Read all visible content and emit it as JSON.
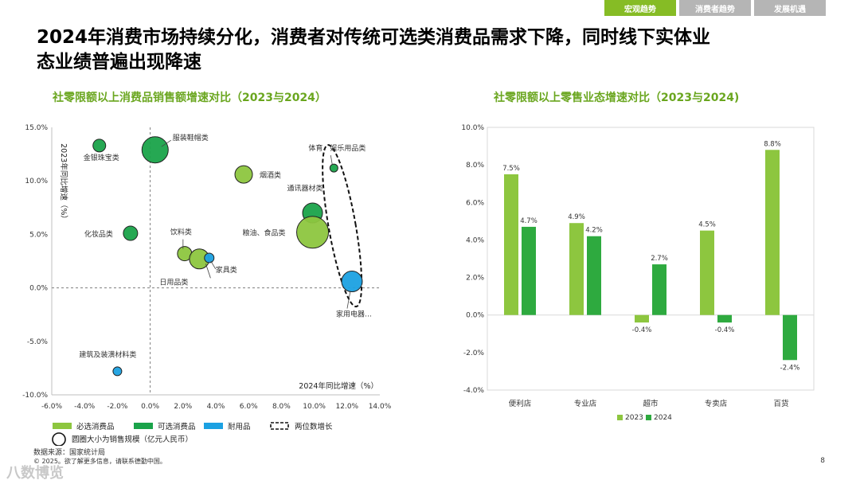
{
  "tabs": [
    "宏观趋势",
    "消费者趋势",
    "发展机遇"
  ],
  "headline_line1": "2024年消费市场持续分化，消费者对传统可选类消费品需求下降，同时线下实体业",
  "headline_line2": "态业绩普遍出现降速",
  "chart_data": [
    {
      "type": "scatter",
      "title": "社零限额以上消费品销售额增速对比（2023与2024）",
      "xlabel": "2024年同比增速（%）",
      "ylabel": "2023年同比增速（%）",
      "xlim": [
        -6,
        14
      ],
      "ylim": [
        -10,
        15
      ],
      "xticks": [
        "-6.0%",
        "-4.0%",
        "-2.0%",
        "0.0%",
        "2.0%",
        "4.0%",
        "6.0%",
        "8.0%",
        "10.0%",
        "12.0%",
        "14.0%"
      ],
      "yticks": [
        "-10.0%",
        "-5.0%",
        "0.0%",
        "5.0%",
        "10.0%",
        "15.0%"
      ],
      "grid": false,
      "series": [
        {
          "name": "必选消费品",
          "color": "#8dc63f"
        },
        {
          "name": "可选消费品",
          "color": "#1aa34a"
        },
        {
          "name": "耐用品",
          "color": "#1ba1e2"
        }
      ],
      "points": [
        {
          "label": "金银珠宝类",
          "x": -3.1,
          "y": 13.3,
          "series": 1,
          "size": 1.6
        },
        {
          "label": "服装鞋帽类",
          "x": 0.3,
          "y": 12.9,
          "series": 1,
          "size": 3.3
        },
        {
          "label": "体育、娱乐用品类",
          "x": 11.2,
          "y": 11.2,
          "series": 1,
          "size": 1.0
        },
        {
          "label": "烟酒类",
          "x": 5.7,
          "y": 10.6,
          "series": 0,
          "size": 2.2
        },
        {
          "label": "通讯器材类",
          "x": 9.9,
          "y": 7.0,
          "series": 1,
          "size": 2.5
        },
        {
          "label": "粮油、食品类",
          "x": 9.9,
          "y": 5.2,
          "series": 0,
          "size": 4.0
        },
        {
          "label": "化妆品类",
          "x": -1.2,
          "y": 5.1,
          "series": 1,
          "size": 1.8
        },
        {
          "label": "饮料类",
          "x": 2.1,
          "y": 3.2,
          "series": 0,
          "size": 1.8
        },
        {
          "label": "日用品类",
          "x": 3.0,
          "y": 2.7,
          "series": 0,
          "size": 2.5
        },
        {
          "label": "家具类",
          "x": 3.6,
          "y": 2.8,
          "series": 2,
          "size": 1.2
        },
        {
          "label": "家用电器…",
          "x": 12.3,
          "y": 0.6,
          "series": 2,
          "size": 2.6
        },
        {
          "label": "建筑及装潢材料类",
          "x": -2.0,
          "y": -7.8,
          "series": 2,
          "size": 1.1
        }
      ],
      "legend": [
        "必选消费品",
        "可选消费品",
        "耐用品",
        "两位数增长"
      ],
      "legend_size_note": "圆圈大小为销售规模（亿元人民币）",
      "legend_placement": "bottom"
    },
    {
      "type": "bar",
      "title": "社零限额以上零售业态增速对比（2023与2024)",
      "categories": [
        "便利店",
        "专业店",
        "超市",
        "专卖店",
        "百货"
      ],
      "series": [
        {
          "name": "2023",
          "values": [
            7.5,
            4.9,
            -0.4,
            4.5,
            8.8
          ],
          "color": "#8dc63f"
        },
        {
          "name": "2024",
          "values": [
            4.7,
            4.2,
            2.7,
            -0.4,
            -2.4
          ],
          "color": "#2eaa3f"
        }
      ],
      "data_labels": [
        [
          "7.5%",
          "4.9%",
          "-0.4%",
          "4.5%",
          "8.8%"
        ],
        [
          "4.7%",
          "4.2%",
          "2.7%",
          "-0.4%",
          "-2.4%"
        ]
      ],
      "ylim": [
        -4,
        10
      ],
      "yticks": [
        "-4.0%",
        "-2.0%",
        "0.0%",
        "2.0%",
        "4.0%",
        "6.0%",
        "8.0%",
        "10.0%"
      ],
      "grid": false,
      "legend_placement": "bottom"
    }
  ],
  "source": "数据来源：国家统计局",
  "copyright": "© 2025。欲了解更多信息，请联系德勤中国。",
  "page_number": "8",
  "watermark": "八数博览"
}
